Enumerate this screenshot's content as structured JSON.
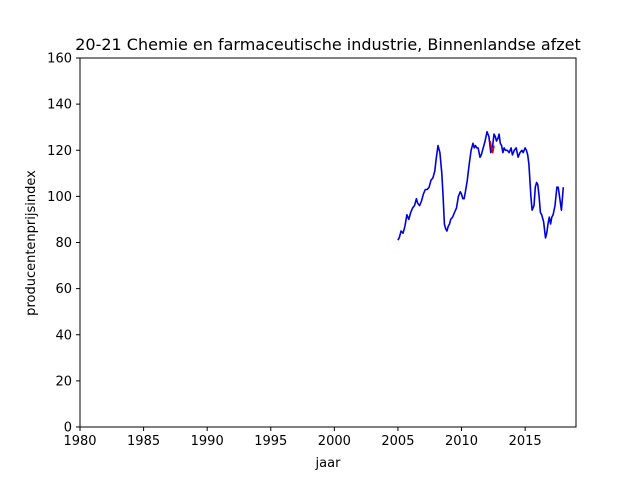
{
  "chart_data": {
    "type": "line",
    "title": "20-21 Chemie en farmaceutische industrie, Binnenlandse afzet",
    "xlabel": "jaar",
    "ylabel": "producentenprijsindex",
    "xlim": [
      1980,
      2019
    ],
    "ylim": [
      0,
      160
    ],
    "xticks": [
      1980,
      1985,
      1990,
      1995,
      2000,
      2005,
      2010,
      2015
    ],
    "yticks": [
      0,
      20,
      40,
      60,
      80,
      100,
      120,
      140,
      160
    ],
    "grid": false,
    "series": [
      {
        "color": "#0000dd",
        "x": [
          2005.0,
          2005.1,
          2005.25,
          2005.4,
          2005.55,
          2005.7,
          2005.85,
          2006.0,
          2006.15,
          2006.3,
          2006.45,
          2006.55,
          2006.7,
          2006.85,
          2007.0,
          2007.15,
          2007.3,
          2007.45,
          2007.6,
          2007.75,
          2007.9,
          2008.0,
          2008.15,
          2008.3,
          2008.45,
          2008.55,
          2008.65,
          2008.75,
          2008.85,
          2008.95,
          2009.05,
          2009.15,
          2009.3,
          2009.45,
          2009.6,
          2009.75,
          2009.9,
          2010.0,
          2010.1,
          2010.2,
          2010.3,
          2010.45,
          2010.6,
          2010.75,
          2010.9,
          2011.0,
          2011.1,
          2011.2,
          2011.3,
          2011.45,
          2011.55,
          2011.7,
          2011.85,
          2012.0,
          2012.15,
          2012.3,
          2012.45,
          2012.55,
          2012.65,
          2012.75,
          2012.85,
          2012.95,
          2013.05,
          2013.15,
          2013.25,
          2013.35,
          2013.45,
          2013.6,
          2013.75,
          2013.9,
          2014.0,
          2014.15,
          2014.3,
          2014.45,
          2014.6,
          2014.75,
          2014.85,
          2015.0,
          2015.1,
          2015.2,
          2015.3,
          2015.45,
          2015.55,
          2015.7,
          2015.8,
          2015.9,
          2016.0,
          2016.1,
          2016.2,
          2016.3,
          2016.45,
          2016.6,
          2016.7,
          2016.8,
          2016.9,
          2017.0,
          2017.1,
          2017.2,
          2017.35,
          2017.5,
          2017.6,
          2017.7,
          2017.85,
          2018.0
        ],
        "y": [
          81,
          82,
          85,
          84,
          87,
          92,
          90,
          93,
          95,
          96,
          99,
          97,
          96,
          98,
          101,
          103,
          103,
          104,
          107,
          108,
          111,
          116,
          122,
          119,
          110,
          100,
          88,
          86,
          85,
          87,
          88,
          90,
          91,
          93,
          95,
          100,
          102,
          101,
          99,
          99,
          102,
          107,
          114,
          120,
          123,
          121,
          122,
          121,
          121,
          117,
          118,
          121,
          124,
          128,
          126,
          119,
          122,
          127,
          126,
          124,
          125,
          127,
          123,
          122,
          119,
          121,
          120,
          120,
          119,
          121,
          118,
          120,
          121,
          117,
          119,
          120,
          119,
          121,
          120,
          118,
          114,
          100,
          94,
          96,
          104,
          106,
          105,
          100,
          93,
          92,
          89,
          82,
          84,
          88,
          91,
          88,
          91,
          92,
          96,
          104,
          104,
          100,
          94,
          104
        ]
      },
      {
        "color": "#dd0000",
        "x": [
          2012.25,
          2012.35,
          2012.45,
          2012.55
        ],
        "y": [
          124,
          121,
          119,
          122
        ]
      }
    ]
  }
}
